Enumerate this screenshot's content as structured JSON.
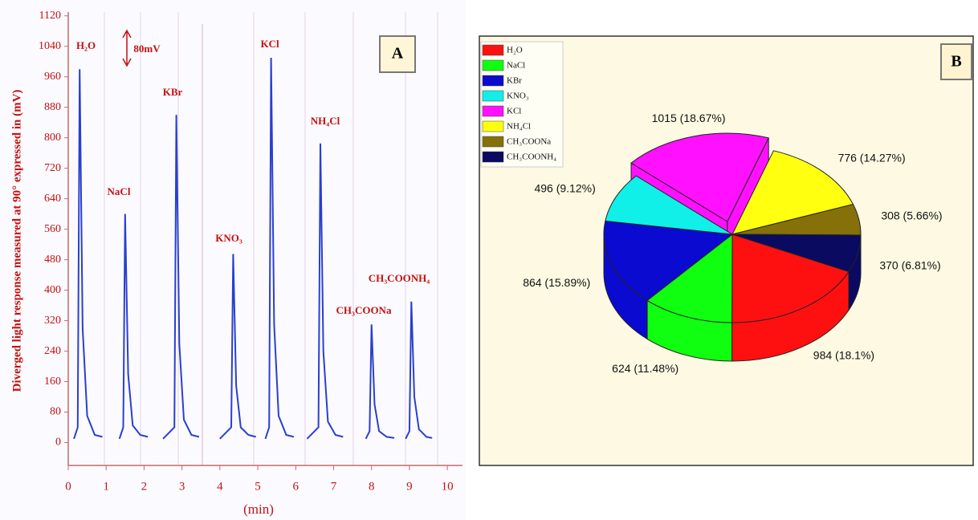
{
  "chart_data": [
    {
      "type": "line",
      "panel_label": "A",
      "ylabel": "Diverged light response measured at 90° expressed in (mV)",
      "xlabel": "(min)",
      "color": "#2a3fcf",
      "x": [
        0.15,
        0.25,
        0.3,
        0.38,
        0.5,
        0.7,
        0.9,
        null,
        1.35,
        1.45,
        1.5,
        1.58,
        1.7,
        1.9,
        2.1,
        null,
        2.5,
        2.8,
        2.85,
        2.93,
        3.05,
        3.25,
        3.45,
        null,
        4.0,
        4.3,
        4.35,
        4.43,
        4.55,
        4.75,
        4.95,
        null,
        5.2,
        5.3,
        5.35,
        5.43,
        5.55,
        5.75,
        5.95,
        null,
        6.3,
        6.6,
        6.65,
        6.73,
        6.85,
        7.05,
        7.25,
        null,
        7.85,
        7.95,
        8.0,
        8.08,
        8.2,
        8.4,
        8.6,
        null,
        8.9,
        9.0,
        9.05,
        9.13,
        9.25,
        9.45,
        9.6
      ],
      "values": [
        10,
        40,
        980,
        300,
        70,
        20,
        15,
        null,
        10,
        40,
        600,
        180,
        45,
        20,
        15,
        null,
        10,
        40,
        860,
        260,
        60,
        20,
        15,
        null,
        10,
        40,
        495,
        150,
        40,
        20,
        15,
        null,
        10,
        40,
        1010,
        310,
        70,
        20,
        15,
        null,
        10,
        40,
        785,
        240,
        55,
        20,
        15,
        null,
        10,
        30,
        310,
        100,
        30,
        15,
        12,
        null,
        10,
        30,
        370,
        120,
        35,
        15,
        12
      ],
      "xlim": [
        0,
        10.4
      ],
      "ylim": [
        -60,
        1130
      ],
      "xticks": [
        0,
        1,
        2,
        3,
        4,
        5,
        6,
        7,
        8,
        9,
        10
      ],
      "yticks": [
        0,
        80,
        160,
        240,
        320,
        400,
        480,
        560,
        640,
        720,
        800,
        880,
        960,
        1040,
        1120
      ],
      "annotations": [
        "H₂O",
        "NaCl",
        "KBr",
        "KNO₃",
        "KCl",
        "NH₄Cl",
        "CH₃COONa",
        "CH₃COONH₄",
        "80mV"
      ]
    },
    {
      "type": "pie",
      "panel_label": "B",
      "categories": [
        "H₂O",
        "NaCl",
        "KBr",
        "KNO₃",
        "KCl",
        "NH₄Cl",
        "CH₃COONa",
        "CH₃COONH₄"
      ],
      "values": [
        984,
        624,
        864,
        496,
        1015,
        776,
        308,
        370
      ],
      "value_labels": [
        "984 (18.1%)",
        "624 (11.48%)",
        "864 (15.89%)",
        "496 (9.12%)",
        "1015 (18.67%)",
        "776 (14.27%)",
        "308 (5.66%)",
        "370 (6.81%)"
      ],
      "colors": [
        "#ff1010",
        "#10ff10",
        "#0a0ad0",
        "#10f0e8",
        "#ff10ff",
        "#ffff10",
        "#85700a",
        "#0a0a60"
      ],
      "exploded": [
        false,
        false,
        false,
        false,
        true,
        false,
        false,
        false
      ],
      "legend": "upper left"
    }
  ]
}
